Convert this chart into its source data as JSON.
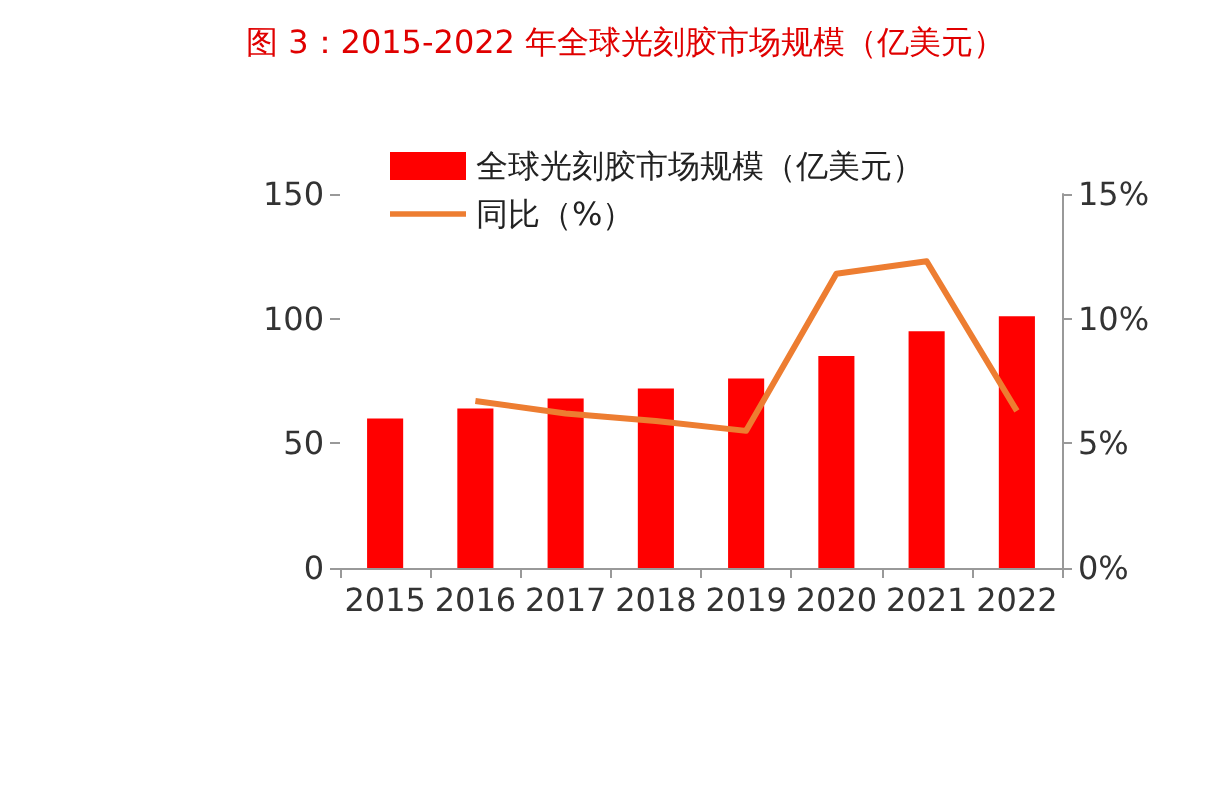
{
  "chart_data": {
    "type": "bar",
    "title": "图 3：2015-2022 年全球光刻胶市场规模（亿美元）",
    "categories": [
      "2015",
      "2016",
      "2017",
      "2018",
      "2019",
      "2020",
      "2021",
      "2022"
    ],
    "series": [
      {
        "name": "全球光刻胶市场规模（亿美元）",
        "color": "#ff0000",
        "values": [
          60,
          64,
          68,
          72,
          76,
          85,
          95,
          101
        ]
      },
      {
        "name": "同比（%）",
        "type": "line",
        "axis": "y2",
        "color": "#ed7d31",
        "marker": "none",
        "values": [
          null,
          6.7,
          6.2,
          5.9,
          5.5,
          11.8,
          12.3,
          6.3
        ]
      }
    ],
    "ylim": [
      0,
      150
    ],
    "yticks": [
      0,
      50,
      100,
      150
    ],
    "y2lim": [
      0,
      15
    ],
    "y2ticks": [
      {
        "value": 0,
        "label": "0%"
      },
      {
        "value": 5,
        "label": "5%"
      },
      {
        "value": 10,
        "label": "10%"
      },
      {
        "value": 15,
        "label": "15%"
      }
    ],
    "grid": false,
    "legend": "top left"
  }
}
